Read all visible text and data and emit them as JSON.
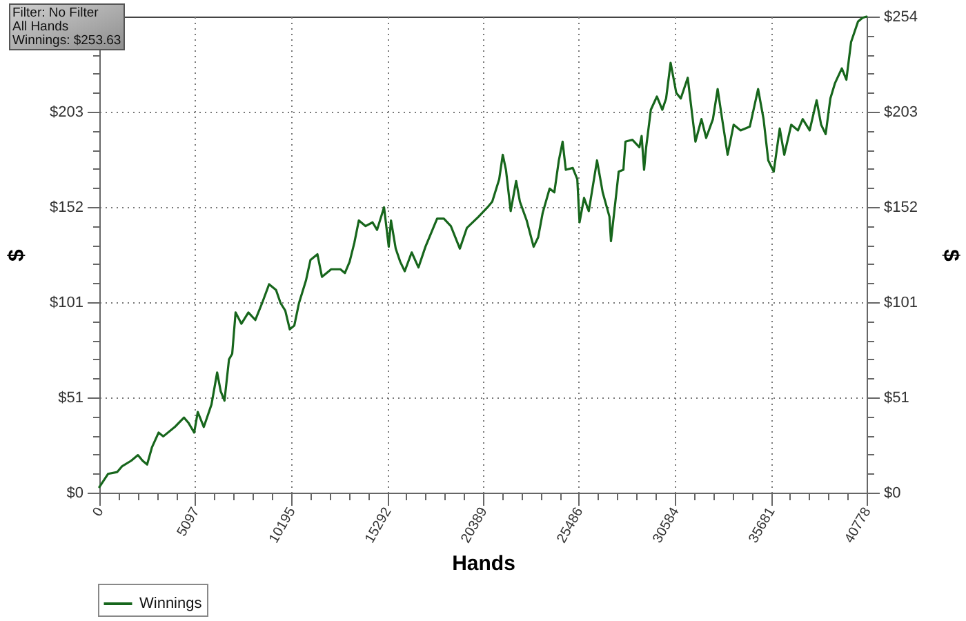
{
  "chart_data": {
    "type": "line",
    "xlabel": "Hands",
    "ylabel": "$",
    "y2label": "$",
    "annotations": [
      "Filter: No Filter",
      "All Hands",
      "Winnings: $253.63"
    ],
    "x": [
      0,
      460,
      950,
      1200,
      1690,
      2050,
      2300,
      2540,
      2790,
      3150,
      3400,
      4010,
      4500,
      4750,
      5040,
      5230,
      5550,
      5790,
      5960,
      6260,
      6450,
      6650,
      6890,
      7060,
      7240,
      7550,
      7920,
      8290,
      8650,
      9020,
      9390,
      9630,
      9880,
      10120,
      10360,
      10610,
      10980,
      11220,
      11590,
      11830,
      12320,
      12810,
      13050,
      13300,
      13550,
      13790,
      14150,
      14520,
      14760,
      15130,
      15380,
      15500,
      15750,
      15990,
      16230,
      16600,
      16960,
      17330,
      17950,
      18310,
      18680,
      19160,
      19530,
      20150,
      20630,
      20880,
      21250,
      21440,
      21610,
      21860,
      22150,
      22350,
      22710,
      23080,
      23320,
      23560,
      23930,
      24180,
      24420,
      24620,
      24790,
      25160,
      25400,
      25520,
      25760,
      26010,
      26450,
      26750,
      27110,
      27190,
      27480,
      27600,
      27850,
      27960,
      28330,
      28700,
      28820,
      28950,
      29060,
      29310,
      29630,
      29920,
      30120,
      30360,
      30660,
      30900,
      31270,
      31510,
      31680,
      32000,
      32250,
      32610,
      32860,
      33100,
      33390,
      33710,
      34080,
      34570,
      35010,
      35300,
      35550,
      35840,
      36160,
      36400,
      36770,
      37130,
      37380,
      37750,
      38120,
      38360,
      38600,
      38850,
      39090,
      39460,
      39700,
      39950,
      40320,
      40560,
      40778
    ],
    "series": [
      {
        "name": "Winnings",
        "color": "#17661c",
        "values": [
          3,
          10,
          11,
          14,
          17,
          20,
          17,
          15,
          24,
          32,
          30,
          35,
          40,
          37,
          32,
          43,
          35,
          42,
          47,
          64,
          54,
          49,
          71,
          74,
          96,
          90,
          96,
          92,
          101,
          111,
          108,
          101,
          97,
          87,
          89,
          101,
          113,
          124,
          127,
          115,
          119,
          119,
          117,
          123,
          133,
          145,
          142,
          144,
          140,
          152,
          131,
          145,
          130,
          123,
          118,
          128,
          120,
          131,
          146,
          146,
          142,
          130,
          141,
          147,
          152,
          155,
          167,
          180,
          172,
          150,
          166,
          155,
          145,
          131,
          136,
          149,
          162,
          160,
          177,
          187,
          172,
          173,
          167,
          144,
          157,
          150,
          177,
          160,
          147,
          134,
          160,
          171,
          172,
          187,
          188,
          184,
          190,
          172,
          184,
          204,
          211,
          204,
          210,
          229,
          213,
          210,
          221,
          201,
          187,
          199,
          189,
          199,
          215,
          199,
          180,
          196,
          193,
          195,
          215,
          199,
          177,
          171,
          194,
          180,
          196,
          193,
          199,
          193,
          209,
          196,
          191,
          210,
          218,
          226,
          220,
          240,
          251,
          253,
          253.6
        ]
      }
    ],
    "xlim": [
      0,
      40778
    ],
    "xticks": [
      0,
      {
        "value": 1019.45,
        "label": null
      },
      {
        "value": 2038.9,
        "label": null
      },
      {
        "value": 3058.35,
        "label": null
      },
      {
        "value": 4077.8,
        "label": null
      },
      5097,
      {
        "value": 6116.7,
        "label": null
      },
      {
        "value": 7136.15,
        "label": null
      },
      {
        "value": 8155.6,
        "label": null
      },
      {
        "value": 9175.05,
        "label": null
      },
      10195,
      {
        "value": 11213.95,
        "label": null
      },
      {
        "value": 12233.4,
        "label": null
      },
      {
        "value": 13252.85,
        "label": null
      },
      {
        "value": 14272.3,
        "label": null
      },
      15292,
      {
        "value": 16311.2,
        "label": null
      },
      {
        "value": 17330.65,
        "label": null
      },
      {
        "value": 18350.1,
        "label": null
      },
      {
        "value": 19369.55,
        "label": null
      },
      20389,
      {
        "value": 21408.45,
        "label": null
      },
      {
        "value": 22427.9,
        "label": null
      },
      {
        "value": 23447.35,
        "label": null
      },
      {
        "value": 24466.8,
        "label": null
      },
      25486,
      {
        "value": 26505.7,
        "label": null
      },
      {
        "value": 27525.15,
        "label": null
      },
      {
        "value": 28544.6,
        "label": null
      },
      {
        "value": 29564.05,
        "label": null
      },
      30584,
      {
        "value": 31602.95,
        "label": null
      },
      {
        "value": 32622.4,
        "label": null
      },
      {
        "value": 33641.85,
        "label": null
      },
      {
        "value": 34661.3,
        "label": null
      },
      35681,
      {
        "value": 36700.2,
        "label": null
      },
      {
        "value": 37719.65,
        "label": null
      },
      {
        "value": 38739.1,
        "label": null
      },
      {
        "value": 39758.55,
        "label": null
      },
      40778
    ],
    "ylim": [
      0,
      253.63
    ],
    "yticks": [
      {
        "value": 0,
        "label": "$0"
      },
      {
        "value": 10.15,
        "label": null
      },
      {
        "value": 20.29,
        "label": null
      },
      {
        "value": 30.44,
        "label": null
      },
      {
        "value": 40.58,
        "label": null
      },
      {
        "value": 50.73,
        "label": "$51"
      },
      {
        "value": 60.87,
        "label": null
      },
      {
        "value": 71.02,
        "label": null
      },
      {
        "value": 81.16,
        "label": null
      },
      {
        "value": 91.31,
        "label": null
      },
      {
        "value": 101.45,
        "label": "$101"
      },
      {
        "value": 111.6,
        "label": null
      },
      {
        "value": 121.74,
        "label": null
      },
      {
        "value": 131.89,
        "label": null
      },
      {
        "value": 142.03,
        "label": null
      },
      {
        "value": 152.18,
        "label": "$152"
      },
      {
        "value": 162.32,
        "label": null
      },
      {
        "value": 172.47,
        "label": null
      },
      {
        "value": 182.61,
        "label": null
      },
      {
        "value": 192.76,
        "label": null
      },
      {
        "value": 202.9,
        "label": "$203"
      },
      {
        "value": 213.05,
        "label": null
      },
      {
        "value": 223.19,
        "label": null
      },
      {
        "value": 233.34,
        "label": null
      },
      {
        "value": 243.48,
        "label": null
      },
      {
        "value": 253.63,
        "label": null
      }
    ],
    "y2lim": [
      0,
      253.63
    ],
    "y2ticks": [
      {
        "value": 0,
        "label": "$0"
      },
      {
        "value": 10.15,
        "label": null
      },
      {
        "value": 20.29,
        "label": null
      },
      {
        "value": 30.44,
        "label": null
      },
      {
        "value": 40.58,
        "label": null
      },
      {
        "value": 50.73,
        "label": "$51"
      },
      {
        "value": 60.87,
        "label": null
      },
      {
        "value": 71.02,
        "label": null
      },
      {
        "value": 81.16,
        "label": null
      },
      {
        "value": 91.31,
        "label": null
      },
      {
        "value": 101.45,
        "label": "$101"
      },
      {
        "value": 111.6,
        "label": null
      },
      {
        "value": 121.74,
        "label": null
      },
      {
        "value": 131.89,
        "label": null
      },
      {
        "value": 142.03,
        "label": null
      },
      {
        "value": 152.18,
        "label": "$152"
      },
      {
        "value": 162.32,
        "label": null
      },
      {
        "value": 172.47,
        "label": null
      },
      {
        "value": 182.61,
        "label": null
      },
      {
        "value": 192.76,
        "label": null
      },
      {
        "value": 202.9,
        "label": "$203"
      },
      {
        "value": 213.05,
        "label": null
      },
      {
        "value": 223.19,
        "label": null
      },
      {
        "value": 233.34,
        "label": null
      },
      {
        "value": 243.48,
        "label": null
      },
      {
        "value": 253.63,
        "label": "$254"
      }
    ],
    "grid": true,
    "legend": "bottom left"
  }
}
